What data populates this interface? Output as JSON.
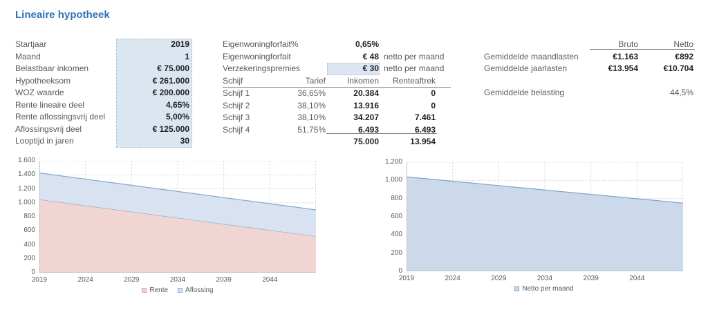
{
  "title": "Lineaire hypotheek",
  "colors": {
    "accent_title": "#2e74b5",
    "label_gray": "#595959",
    "value_black": "#1f1f1f",
    "input_cell_bg": "#dce6f1",
    "input_cell_border": "#aec4dc",
    "grid": "#d9d9d9",
    "axis": "#bfbfbf",
    "rente_fill": "#f0d5d2",
    "rente_swatch_border": "#d8a09c",
    "blue_fill": "#d9e2f0",
    "blue_stroke": "#84a7cb",
    "netto_fill": "#ccd9ea",
    "netto_stroke": "#7da2c9"
  },
  "inputs": {
    "rows": [
      {
        "label": "Startjaar",
        "value": "2019"
      },
      {
        "label": "Maand",
        "value": "1"
      },
      {
        "label": "Belastbaar inkomen",
        "value": "€ 75.000"
      },
      {
        "label": "Hypotheeksom",
        "value": "€ 261.000"
      },
      {
        "label": "WOZ waarde",
        "value": "€ 200.000"
      },
      {
        "label": "Rente lineaire deel",
        "value": "4,65%"
      },
      {
        "label": "Rente aflossingsvrij deel",
        "value": "5,00%"
      },
      {
        "label": "Aflossingsvrij deel",
        "value": "€ 125.000"
      },
      {
        "label": "Looptijd in jaren",
        "value": "30"
      }
    ]
  },
  "middle": {
    "params": [
      {
        "label": "Eigenwoningforfait%",
        "value": "0,65%",
        "suffix": "",
        "input": false
      },
      {
        "label": "Eigenwoningforfait",
        "value": "€ 48",
        "suffix": "netto per maand",
        "input": false
      },
      {
        "label": "Verzekeringspremies",
        "value": "€ 30",
        "suffix": "netto per maand",
        "input": true
      }
    ],
    "table": {
      "headers": [
        "Schijf",
        "Tarief",
        "Inkomen",
        "Renteaftrek"
      ],
      "rows": [
        {
          "schijf": "Schijf 1",
          "tarief": "36,65%",
          "inkomen": "20.384",
          "renteaftrek": "0"
        },
        {
          "schijf": "Schijf 2",
          "tarief": "38,10%",
          "inkomen": "13.916",
          "renteaftrek": "0"
        },
        {
          "schijf": "Schijf 3",
          "tarief": "38,10%",
          "inkomen": "34.207",
          "renteaftrek": "7.461"
        },
        {
          "schijf": "Schijf 4",
          "tarief": "51,75%",
          "inkomen": "6.493",
          "renteaftrek": "6.493"
        }
      ],
      "totals": {
        "inkomen": "75.000",
        "renteaftrek": "13.954"
      }
    }
  },
  "summary": {
    "col_headers": [
      "Bruto",
      "Netto"
    ],
    "rows": [
      {
        "label": "Gemiddelde maandlasten",
        "bruto": "€1.163",
        "netto": "€892"
      },
      {
        "label": "Gemiddelde jaarlasten",
        "bruto": "€13.954",
        "netto": "€10.704"
      }
    ],
    "belasting": {
      "label": "Gemiddelde belasting",
      "value": "44,5%"
    }
  },
  "chart_data": [
    {
      "type": "area",
      "stacked": true,
      "x_start": 2019,
      "x_end": 2049,
      "x_ticks": [
        "2019",
        "2024",
        "2029",
        "2034",
        "2039",
        "2044"
      ],
      "y_ticks": [
        "0",
        "200",
        "400",
        "600",
        "800",
        "1.000",
        "1.200",
        "1.400",
        "1.600"
      ],
      "ylim": [
        0,
        1600
      ],
      "grid": true,
      "legend_position": "bottom",
      "x": [
        2019,
        2020,
        2021,
        2022,
        2023,
        2024,
        2025,
        2026,
        2027,
        2028,
        2029,
        2030,
        2031,
        2032,
        2033,
        2034,
        2035,
        2036,
        2037,
        2038,
        2039,
        2040,
        2041,
        2042,
        2043,
        2044,
        2045,
        2046,
        2047,
        2048,
        2049
      ],
      "series": [
        {
          "name": "Rente",
          "fill": "#f0d5d2",
          "stroke": "#84a7cb",
          "swatch_border": "#d8a09c",
          "values": [
            1048,
            1030,
            1013,
            995,
            978,
            960,
            942,
            925,
            907,
            890,
            872,
            855,
            837,
            819,
            802,
            784,
            767,
            749,
            731,
            714,
            696,
            679,
            661,
            644,
            626,
            609,
            591,
            574,
            556,
            538,
            521
          ]
        },
        {
          "name": "Aflossing",
          "fill": "#d9e2f0",
          "stroke": "#84a7cb",
          "swatch_border": "#84a7cb",
          "values": [
            378,
            378,
            378,
            378,
            378,
            378,
            378,
            378,
            378,
            378,
            378,
            378,
            378,
            378,
            378,
            378,
            378,
            378,
            378,
            378,
            378,
            378,
            378,
            378,
            378,
            378,
            378,
            378,
            378,
            378,
            378
          ]
        }
      ]
    },
    {
      "type": "area",
      "stacked": false,
      "x_start": 2019,
      "x_end": 2049,
      "x_ticks": [
        "2019",
        "2024",
        "2029",
        "2034",
        "2039",
        "2044"
      ],
      "y_ticks": [
        "0",
        "200",
        "400",
        "600",
        "800",
        "1.000",
        "1.200"
      ],
      "ylim": [
        0,
        1200
      ],
      "grid": true,
      "legend_position": "bottom",
      "x": [
        2019,
        2020,
        2021,
        2022,
        2023,
        2024,
        2025,
        2026,
        2027,
        2028,
        2029,
        2030,
        2031,
        2032,
        2033,
        2034,
        2035,
        2036,
        2037,
        2038,
        2039,
        2040,
        2041,
        2042,
        2043,
        2044,
        2045,
        2046,
        2047,
        2048,
        2049
      ],
      "series": [
        {
          "name": "Netto per maand",
          "fill": "#ccd9ea",
          "stroke": "#7da2c9",
          "swatch_border": "#7da2c9",
          "values": [
            1039,
            1029,
            1020,
            1010,
            1000,
            991,
            981,
            972,
            962,
            952,
            943,
            933,
            923,
            914,
            904,
            895,
            885,
            875,
            866,
            856,
            846,
            837,
            827,
            818,
            808,
            798,
            789,
            779,
            769,
            760,
            750
          ]
        }
      ]
    }
  ]
}
